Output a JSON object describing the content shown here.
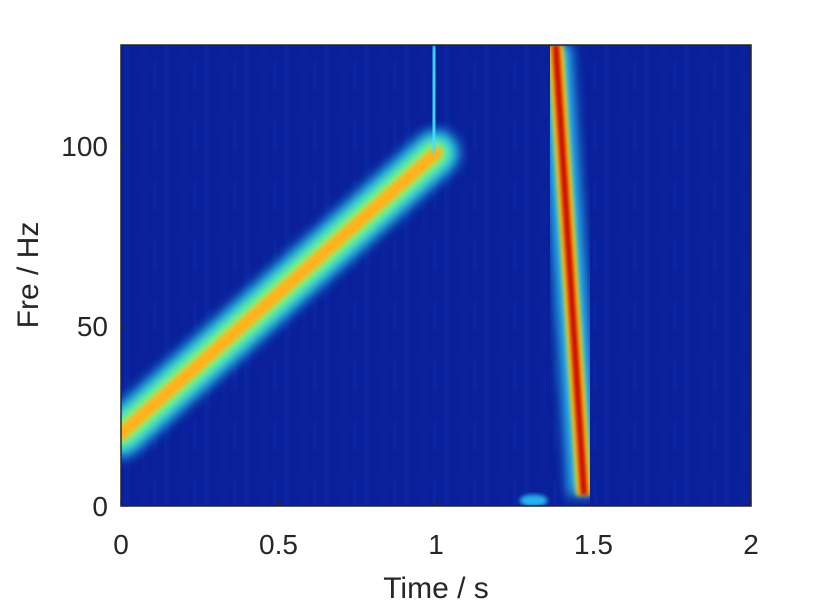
{
  "chart_data": {
    "type": "heatmap",
    "title": "",
    "xlabel": "Time / s",
    "ylabel": "Fre / Hz",
    "xlim": [
      0,
      2
    ],
    "ylim": [
      0,
      128
    ],
    "xticks": [
      0,
      0.5,
      1,
      1.5,
      2
    ],
    "yticks": [
      0,
      50,
      100
    ],
    "xtick_labels": [
      "0",
      "0.5",
      "1",
      "1.5",
      "2"
    ],
    "ytick_labels": [
      "0",
      "50",
      "100"
    ],
    "colormap": "jet",
    "background_color": "#0a1f9a",
    "components": [
      {
        "kind": "linear-chirp",
        "t": [
          0.0,
          1.0
        ],
        "f": [
          20,
          98
        ],
        "intensity": 0.62
      },
      {
        "kind": "near-vertical-sweep",
        "t": [
          1.38,
          1.47
        ],
        "f": [
          128,
          3
        ],
        "intensity": 1.0
      }
    ]
  }
}
